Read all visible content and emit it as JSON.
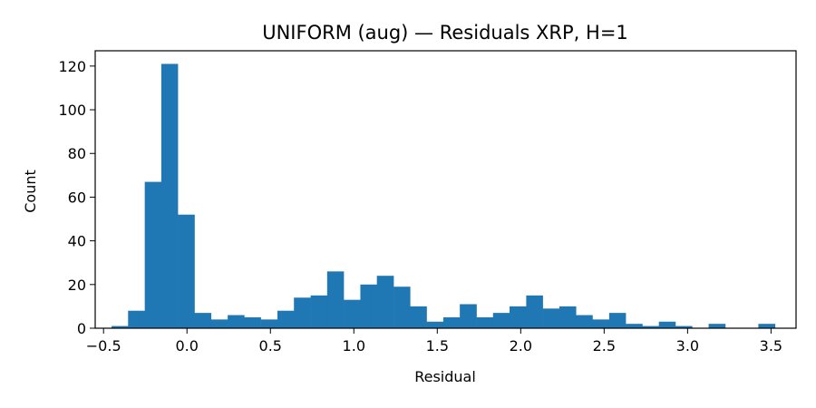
{
  "chart_data": {
    "type": "bar",
    "title": "UNIFORM (aug) — Residuals XRP, H=1",
    "xlabel": "Residual",
    "ylabel": "Count",
    "xlim": [
      -0.55,
      3.65
    ],
    "ylim": [
      0,
      127
    ],
    "x_ticks": [
      -0.5,
      0.0,
      0.5,
      1.0,
      1.5,
      2.0,
      2.5,
      3.0,
      3.5
    ],
    "x_tick_labels": [
      "−0.5",
      "0.0",
      "0.5",
      "1.0",
      "1.5",
      "2.0",
      "2.5",
      "3.0",
      "3.5"
    ],
    "y_ticks": [
      0,
      20,
      40,
      60,
      80,
      100,
      120
    ],
    "y_tick_labels": [
      "0",
      "20",
      "40",
      "60",
      "80",
      "100",
      "120"
    ],
    "bin_edges": [
      -0.452,
      -0.353,
      -0.253,
      -0.154,
      -0.055,
      0.045,
      0.144,
      0.244,
      0.343,
      0.442,
      0.542,
      0.641,
      0.741,
      0.84,
      0.939,
      1.039,
      1.138,
      1.238,
      1.337,
      1.436,
      1.536,
      1.635,
      1.735,
      1.834,
      1.933,
      2.033,
      2.132,
      2.232,
      2.331,
      2.43,
      2.53,
      2.629,
      2.729,
      2.828,
      2.927,
      3.027,
      3.126,
      3.226,
      3.325,
      3.424,
      3.524
    ],
    "values": [
      1,
      8,
      67,
      121,
      52,
      7,
      4,
      6,
      5,
      4,
      8,
      14,
      15,
      26,
      13,
      20,
      24,
      19,
      10,
      3,
      5,
      11,
      5,
      7,
      10,
      15,
      9,
      10,
      6,
      4,
      7,
      2,
      1,
      3,
      1,
      0,
      2,
      0,
      0,
      2
    ],
    "bar_color": "#1f77b4",
    "grid": false,
    "legend": "none"
  }
}
